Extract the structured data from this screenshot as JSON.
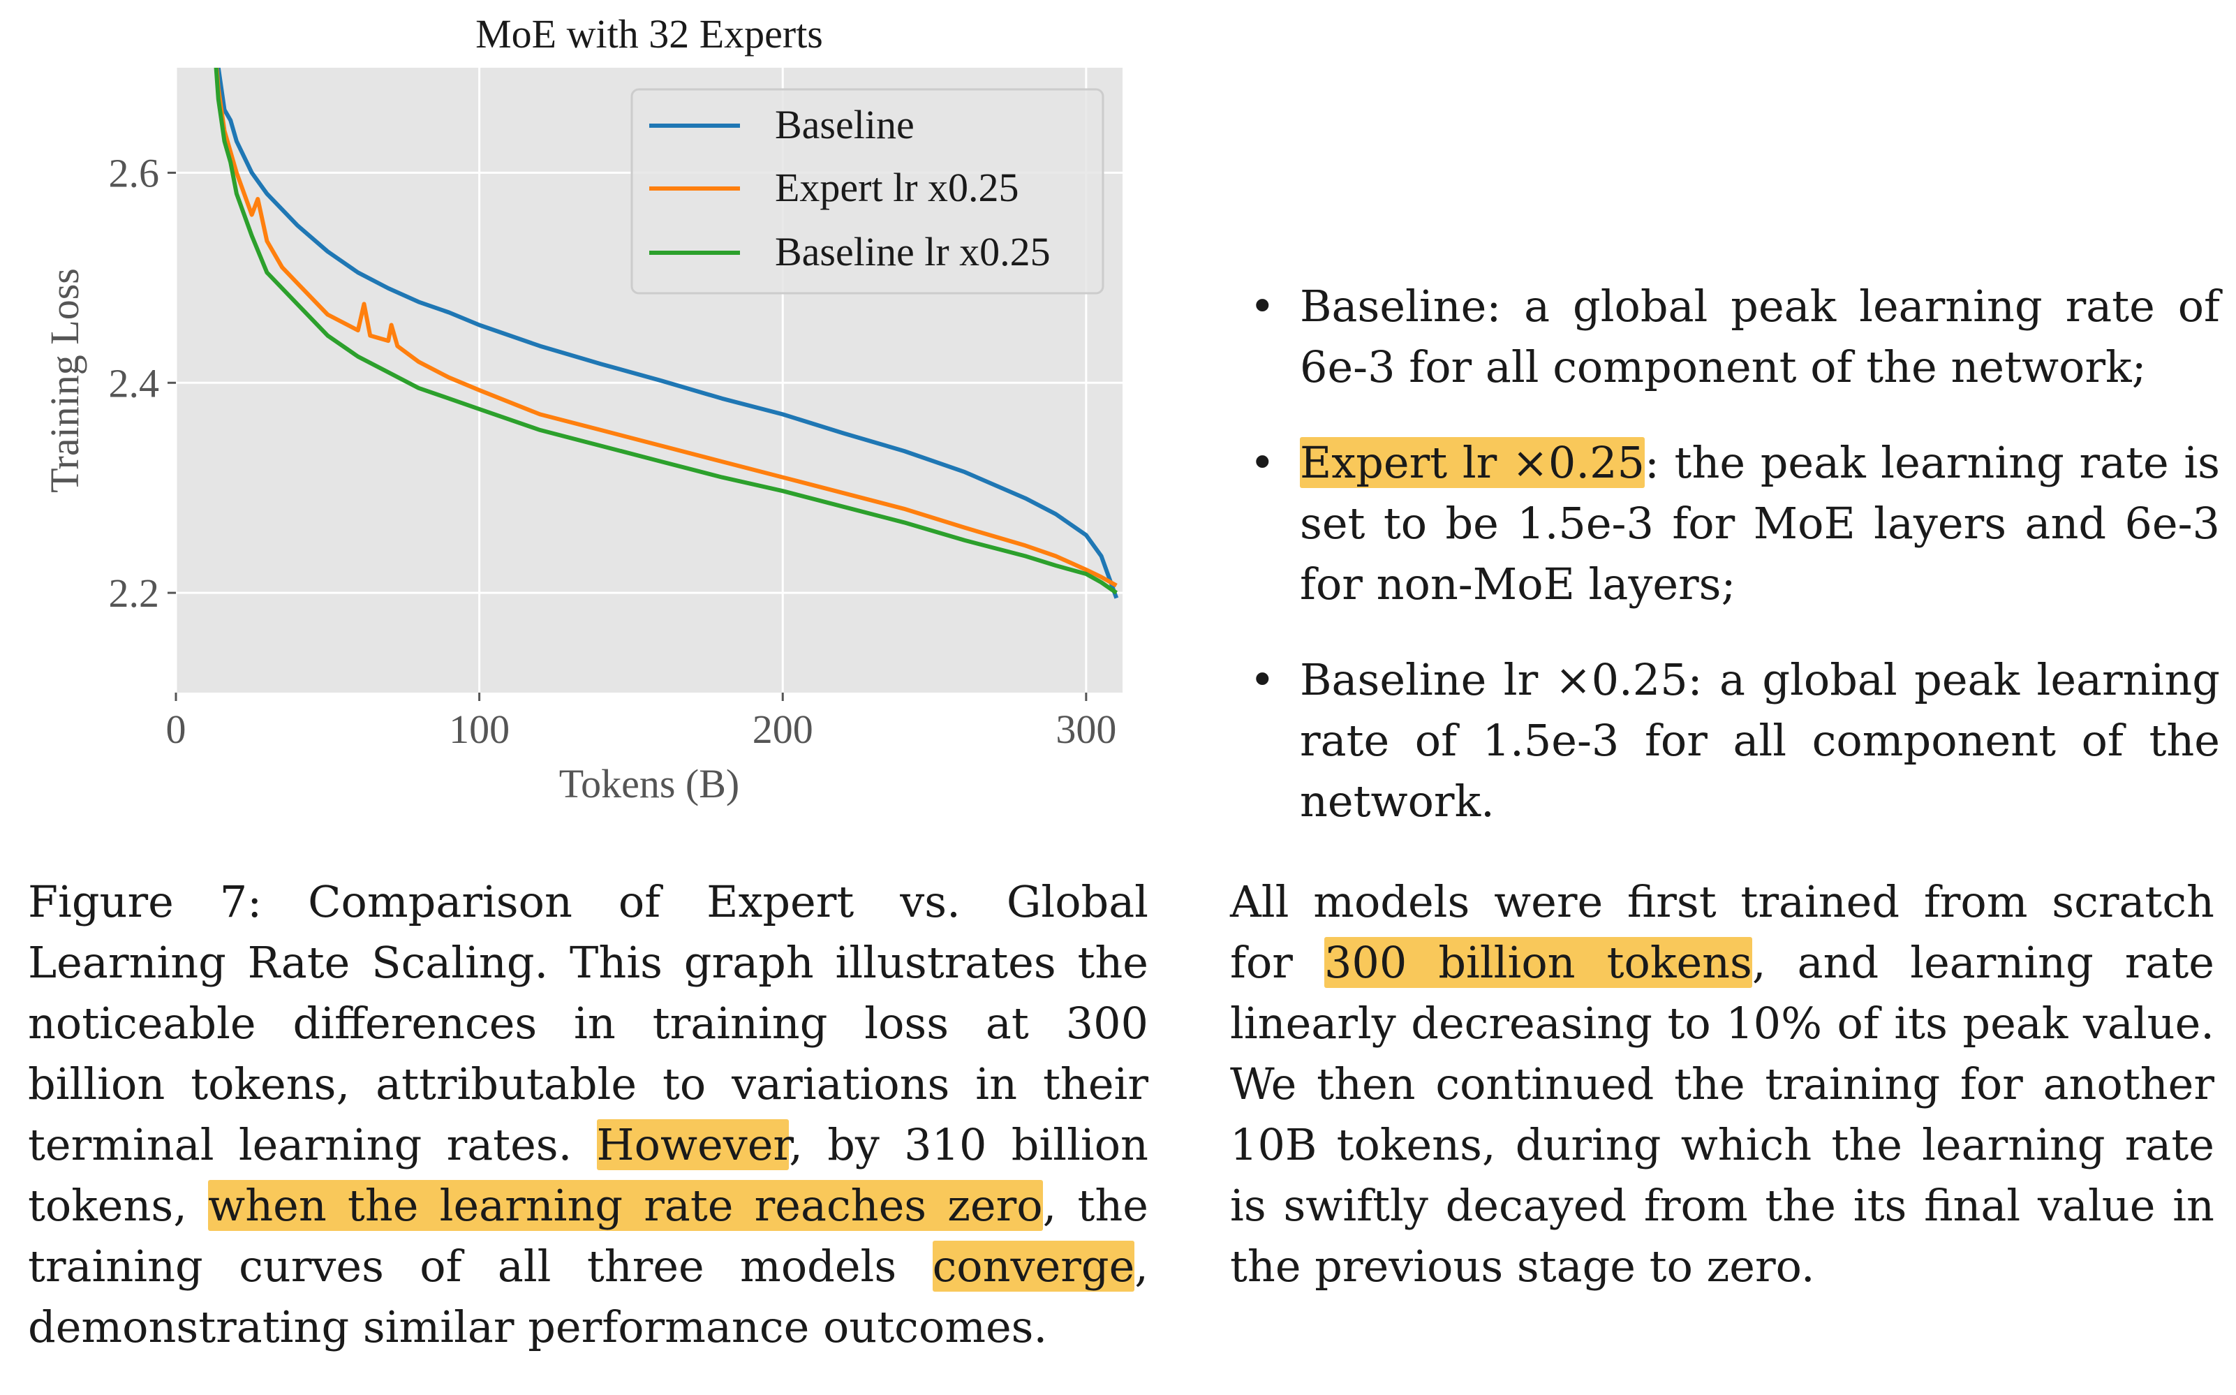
{
  "chart_data": {
    "type": "line",
    "title": "MoE with 32 Experts",
    "xlabel": "Tokens (B)",
    "ylabel": "Training Loss",
    "xlim": [
      0,
      312
    ],
    "ylim": [
      2.105,
      2.7
    ],
    "xticks": [
      0,
      100,
      200,
      300
    ],
    "yticks": [
      2.2,
      2.4,
      2.6
    ],
    "grid": true,
    "legend": "top-right",
    "series": [
      {
        "name": "Baseline",
        "color": "#1f77b4",
        "x": [
          12,
          14,
          16,
          18,
          20,
          25,
          30,
          40,
          50,
          60,
          70,
          80,
          90,
          100,
          120,
          140,
          160,
          180,
          200,
          220,
          240,
          260,
          280,
          290,
          300,
          305,
          310
        ],
        "y": [
          2.75,
          2.7,
          2.66,
          2.65,
          2.63,
          2.6,
          2.58,
          2.55,
          2.525,
          2.505,
          2.49,
          2.477,
          2.467,
          2.455,
          2.435,
          2.418,
          2.402,
          2.385,
          2.37,
          2.352,
          2.335,
          2.315,
          2.29,
          2.275,
          2.255,
          2.235,
          2.195
        ]
      },
      {
        "name": "Expert lr x0.25",
        "color": "#ff7f0e",
        "x": [
          12,
          14,
          16,
          18,
          20,
          25,
          27,
          30,
          35,
          40,
          50,
          60,
          62,
          64,
          70,
          71,
          73,
          80,
          90,
          100,
          120,
          140,
          160,
          180,
          200,
          220,
          240,
          260,
          280,
          290,
          300,
          305,
          310
        ],
        "y": [
          2.75,
          2.68,
          2.64,
          2.62,
          2.6,
          2.56,
          2.575,
          2.535,
          2.51,
          2.495,
          2.465,
          2.45,
          2.475,
          2.445,
          2.44,
          2.455,
          2.435,
          2.42,
          2.405,
          2.393,
          2.37,
          2.355,
          2.34,
          2.325,
          2.31,
          2.295,
          2.28,
          2.262,
          2.245,
          2.235,
          2.222,
          2.215,
          2.207
        ]
      },
      {
        "name": "Baseline lr x0.25",
        "color": "#2ca02c",
        "x": [
          12,
          14,
          16,
          18,
          20,
          25,
          30,
          40,
          50,
          60,
          70,
          80,
          90,
          100,
          120,
          140,
          160,
          180,
          200,
          220,
          240,
          260,
          280,
          290,
          300,
          305,
          310
        ],
        "y": [
          2.75,
          2.67,
          2.63,
          2.61,
          2.58,
          2.54,
          2.505,
          2.475,
          2.445,
          2.425,
          2.41,
          2.395,
          2.385,
          2.375,
          2.355,
          2.34,
          2.325,
          2.31,
          2.297,
          2.282,
          2.267,
          2.25,
          2.235,
          2.226,
          2.218,
          2.21,
          2.2
        ]
      }
    ]
  },
  "caption": {
    "part1": "Figure 7: Comparison of Expert vs. Global Learning Rate Scaling. This graph illustrates the noticeable differences in training loss at 300 billion tokens, attributable to variations in their terminal learning rates. ",
    "hl1": "However",
    "part2": ", by 310 billion tokens, ",
    "hl2": "when the learning rate reaches zero",
    "part3": ", the training curves of all three models ",
    "hl3": "converge",
    "part4": ", demonstrating similar performance outcomes."
  },
  "bullets": {
    "b1": "Baseline: a global peak learning rate of 6e-3 for all component of the network;",
    "b2_hl": "Expert lr ×0.25",
    "b2_rest": ": the peak learning rate is set to be 1.5e-3 for MoE layers and 6e-3 for non-MoE layers;",
    "b3": "Baseline lr ×0.25: a global peak learning rate of 1.5e-3 for all component of the network."
  },
  "paragraph": {
    "part1": "All models were first trained from scratch for ",
    "hl": "300 billion tokens",
    "part2": ", and learning rate linearly decreasing to 10% of its peak value. We then continued the training for another 10B tokens, during which the learning rate is swiftly decayed from the its final value in the previous stage to zero."
  }
}
